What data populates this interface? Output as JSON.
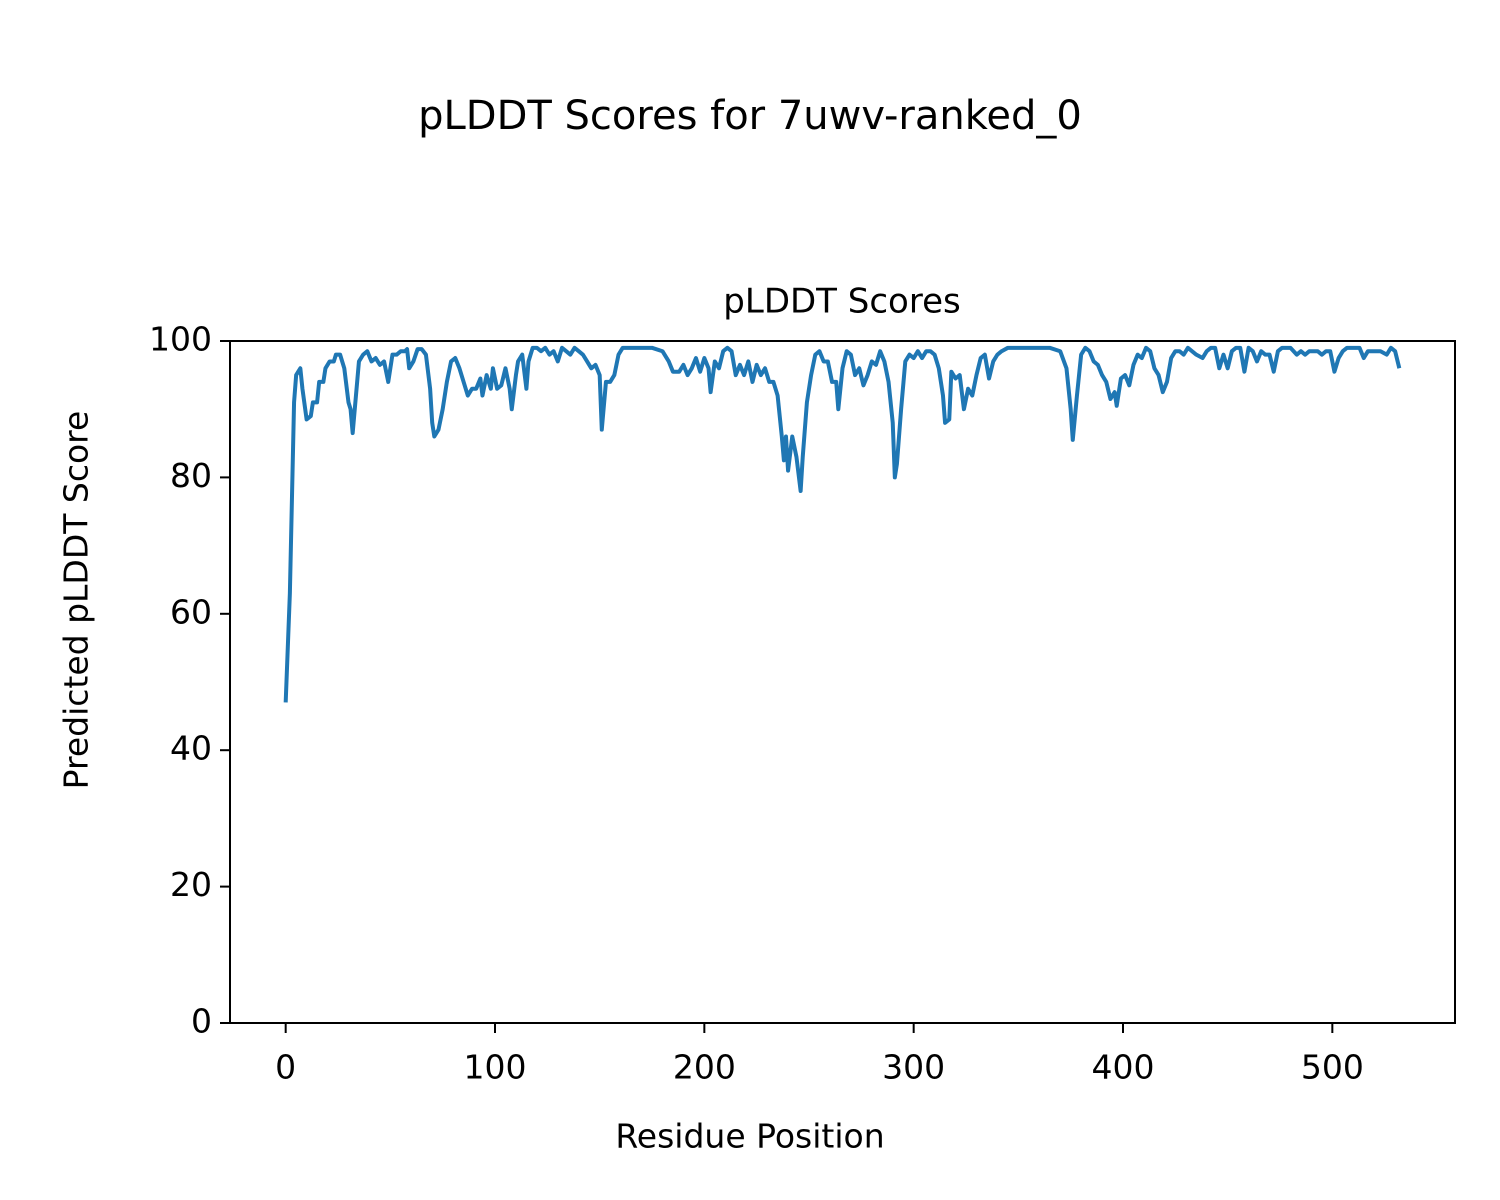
{
  "chart_data": {
    "type": "line",
    "title": "pLDDT Scores for 7uwv-ranked_0",
    "subtitle": "pLDDT Scores",
    "xlabel": "Residue Position",
    "ylabel": "Predicted pLDDT Score",
    "color": "#1f77b4",
    "xlim": [
      -26.6,
      558.6
    ],
    "ylim": [
      0,
      100
    ],
    "xticks": [
      0,
      100,
      200,
      300,
      400,
      500
    ],
    "yticks": [
      0,
      20,
      40,
      60,
      80,
      100
    ],
    "x": [
      0,
      2,
      4,
      5,
      7,
      8,
      10,
      12,
      13,
      15,
      16,
      18,
      19,
      21,
      23,
      24,
      26,
      28,
      30,
      31,
      32,
      33,
      35,
      37,
      39,
      41,
      43,
      45,
      47,
      49,
      51,
      53,
      55,
      57,
      58,
      59,
      61,
      63,
      65,
      67,
      69,
      70,
      71,
      73,
      75,
      77,
      79,
      81,
      83,
      85,
      87,
      89,
      91,
      93,
      94,
      96,
      98,
      99,
      101,
      103,
      105,
      107,
      108,
      110,
      111,
      113,
      115,
      116,
      118,
      120,
      122,
      124,
      126,
      128,
      130,
      132,
      134,
      136,
      138,
      140,
      142,
      144,
      146,
      148,
      150,
      151,
      153,
      155,
      157,
      159,
      161,
      165,
      170,
      175,
      180,
      183,
      185,
      188,
      190,
      192,
      194,
      196,
      198,
      200,
      202,
      203,
      205,
      207,
      209,
      211,
      213,
      215,
      217,
      219,
      221,
      223,
      225,
      227,
      229,
      231,
      233,
      235,
      237,
      238,
      239,
      240,
      242,
      244,
      246,
      247,
      249,
      251,
      253,
      255,
      257,
      259,
      261,
      263,
      264,
      266,
      268,
      270,
      272,
      274,
      276,
      278,
      280,
      282,
      284,
      286,
      288,
      290,
      291,
      292,
      294,
      296,
      298,
      300,
      302,
      304,
      306,
      308,
      310,
      312,
      314,
      315,
      317,
      318,
      320,
      322,
      324,
      326,
      328,
      330,
      332,
      334,
      336,
      338,
      340,
      342,
      345,
      350,
      355,
      360,
      365,
      370,
      373,
      375,
      376,
      378,
      380,
      382,
      384,
      386,
      388,
      390,
      392,
      394,
      396,
      397,
      399,
      401,
      403,
      405,
      407,
      409,
      411,
      413,
      415,
      417,
      419,
      421,
      423,
      425,
      427,
      429,
      431,
      435,
      438,
      440,
      442,
      444,
      446,
      448,
      450,
      452,
      454,
      456,
      458,
      460,
      462,
      464,
      466,
      468,
      470,
      472,
      474,
      476,
      478,
      480,
      483,
      485,
      487,
      489,
      491,
      493,
      495,
      497,
      499,
      501,
      503,
      505,
      507,
      509,
      511,
      513,
      515,
      517,
      520,
      523,
      526,
      528,
      530,
      532
    ],
    "values": [
      47,
      63,
      91,
      95,
      96,
      93,
      88.5,
      89,
      91,
      91,
      94,
      94,
      96,
      97,
      97,
      98,
      98,
      96,
      91,
      90,
      86.5,
      90,
      97,
      98,
      98.5,
      97,
      97.5,
      96.5,
      97,
      94,
      98,
      98,
      98.5,
      98.5,
      98.8,
      96,
      97,
      98.8,
      98.8,
      98,
      93,
      88,
      86,
      87,
      90,
      94,
      97,
      97.5,
      96,
      94,
      92,
      93,
      93,
      94.5,
      92,
      95,
      93,
      96,
      93,
      93.5,
      96,
      93,
      90,
      95,
      97,
      98,
      93,
      97,
      99,
      99,
      98.5,
      99,
      98,
      98.5,
      97,
      99,
      98.5,
      98,
      99,
      98.5,
      98,
      97,
      96,
      96.5,
      95,
      87,
      94,
      94,
      95,
      98,
      99,
      99,
      99,
      99,
      98.5,
      97,
      95.5,
      95.5,
      96.5,
      95,
      96,
      97.5,
      95.5,
      97.5,
      96,
      92.5,
      97,
      96,
      98.5,
      99,
      98.5,
      95,
      96.5,
      95,
      97,
      94,
      96.5,
      95,
      96,
      94,
      94,
      92,
      86,
      82.5,
      86,
      81,
      86,
      83,
      78,
      83,
      91,
      95,
      98,
      98.5,
      97,
      97,
      94,
      94,
      90,
      96,
      98.5,
      98,
      95,
      96,
      93.5,
      95,
      97,
      96.5,
      98.5,
      97,
      94,
      88,
      80,
      82,
      90,
      97,
      98,
      97.5,
      98.5,
      97.5,
      98.5,
      98.5,
      98,
      96,
      92,
      88,
      88.5,
      95.5,
      94.5,
      95,
      90,
      93,
      92,
      95,
      97.5,
      98,
      94.5,
      97,
      98,
      98.5,
      99,
      99,
      99,
      99,
      99,
      98.5,
      96,
      90,
      85.5,
      92,
      98,
      99,
      98.5,
      97,
      96.5,
      95,
      94,
      91.5,
      92.5,
      90.5,
      94.5,
      95,
      93.5,
      96.5,
      98,
      97.5,
      99,
      98.5,
      96,
      95,
      92.5,
      94,
      97.5,
      98.5,
      98.5,
      98,
      99,
      98,
      97.5,
      98.5,
      99,
      99,
      96,
      98,
      96,
      98.5,
      99,
      99,
      95.5,
      99,
      98.5,
      97,
      98.5,
      98,
      98,
      95.5,
      98.5,
      99,
      99,
      99,
      98,
      98.5,
      98,
      98.5,
      98.5,
      98.5,
      98,
      98.5,
      98.5,
      95.5,
      97.5,
      98.5,
      99,
      99,
      99,
      99,
      97.5,
      98.5,
      98.5,
      98.5,
      98,
      99,
      98.5,
      96
    ]
  }
}
